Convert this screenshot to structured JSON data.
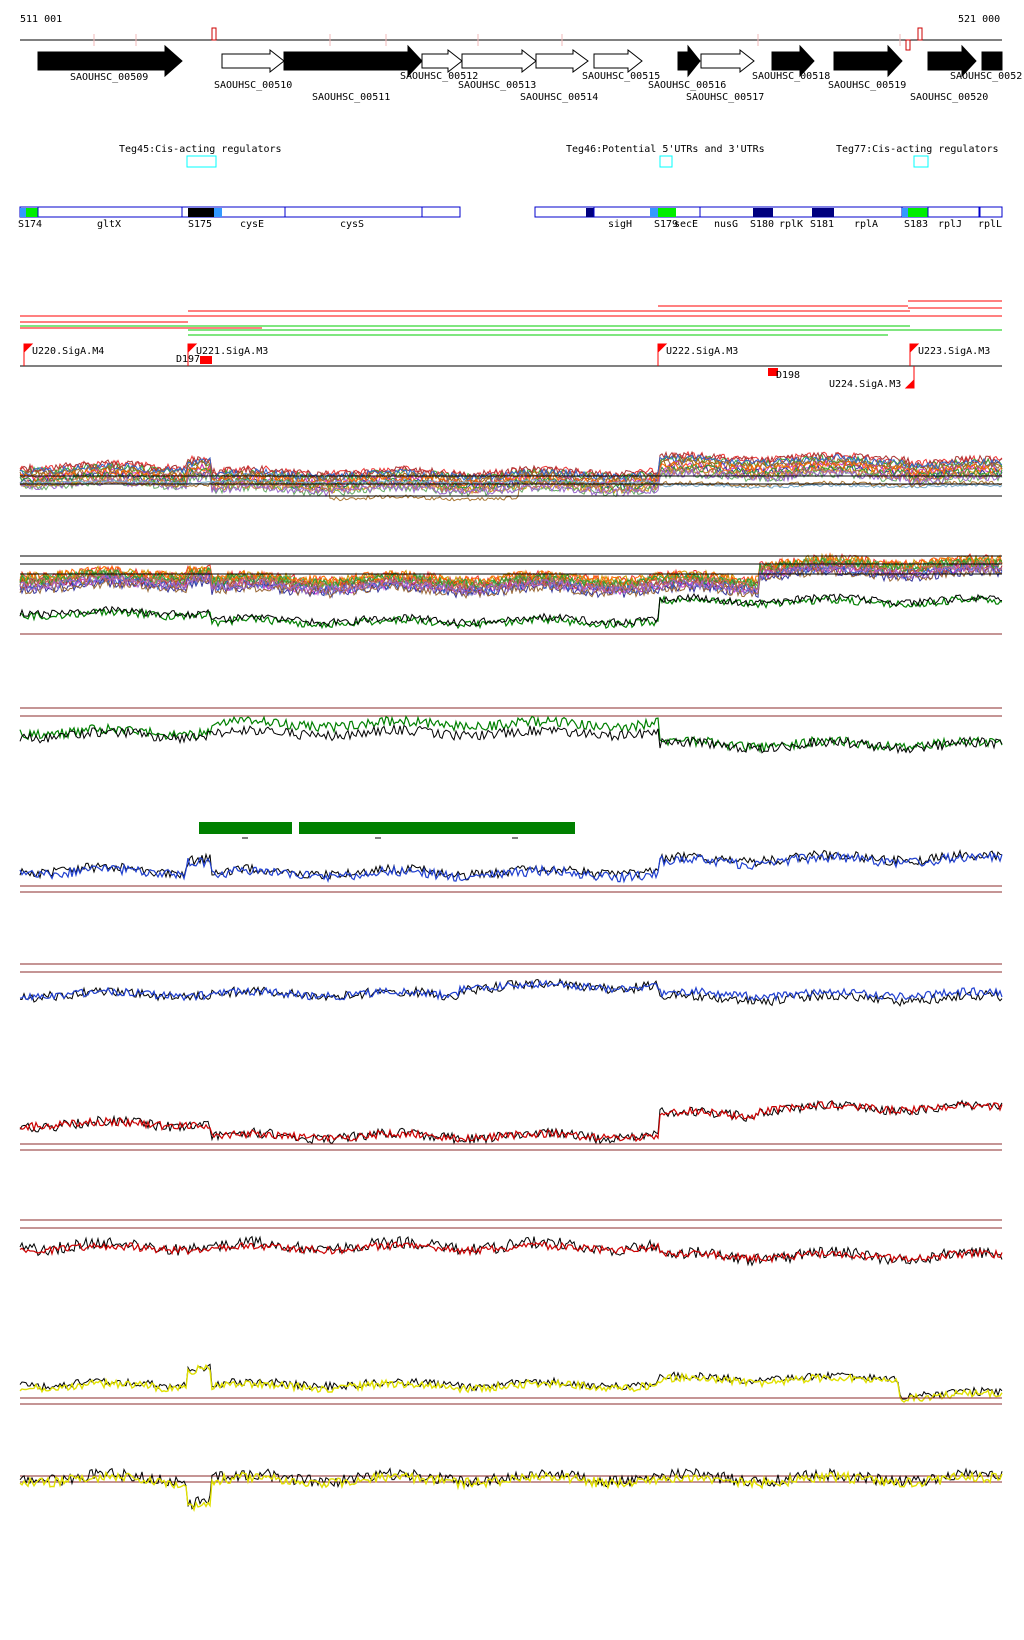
{
  "coordinates": {
    "start": "511 001",
    "end": "521 000"
  },
  "colors": {
    "gene_forward": "#000000",
    "gene_reverse": "#ffffff",
    "annotation_box": "#00ffff",
    "operon_outline": "#0000cc",
    "operon_dark": "#000080",
    "operon_green": "#00ee00",
    "operon_light": "#3399ff",
    "promoter_flag": "#ff0000",
    "transcript_red": "#ff0000",
    "transcript_green": "#00cc00",
    "track_brown": "#8b2b2b",
    "green_line": "#008000",
    "blue_line": "#1f3fcf",
    "red_line": "#cc0000",
    "yellow_line": "#e0e000",
    "black_line": "#000000",
    "green_bar": "#008000"
  },
  "genes": [
    {
      "name": "SAOUHSC_00509",
      "filled": true
    },
    {
      "name": "SAOUHSC_00510",
      "filled": false
    },
    {
      "name": "SAOUHSC_00511",
      "filled": true
    },
    {
      "name": "SAOUHSC_00512",
      "filled": false
    },
    {
      "name": "SAOUHSC_00513",
      "filled": false
    },
    {
      "name": "SAOUHSC_00514",
      "filled": false
    },
    {
      "name": "SAOUHSC_00515",
      "filled": false
    },
    {
      "name": "SAOUHSC_00516",
      "filled": true
    },
    {
      "name": "SAOUHSC_00517",
      "filled": false
    },
    {
      "name": "SAOUHSC_00518",
      "filled": true
    },
    {
      "name": "SAOUHSC_00519",
      "filled": true
    },
    {
      "name": "SAOUHSC_00520",
      "filled": true
    },
    {
      "name": "SAOUHSC_0052",
      "filled": true
    }
  ],
  "annotations": [
    {
      "label": "Teg45:Cis-acting regulators"
    },
    {
      "label": "Teg46:Potential 5'UTRs and 3'UTRs"
    },
    {
      "label": "Teg77:Cis-acting regulators"
    }
  ],
  "operon_labels": [
    "S174",
    "gltX",
    "S175",
    "cysE",
    "cysS",
    "sigH",
    "S179",
    "secE",
    "nusG",
    "S180",
    "rplK",
    "S181",
    "rplA",
    "S183",
    "rplJ",
    "rplL"
  ],
  "promoters": [
    {
      "label": "U220.SigA.M4"
    },
    {
      "label": "U221.SigA.M3"
    },
    {
      "label": "U222.SigA.M3"
    },
    {
      "label": "U223.SigA.M3"
    },
    {
      "label": "U224.SigA.M3"
    }
  ],
  "terminators": [
    {
      "label": "D197"
    },
    {
      "label": "D198"
    }
  ],
  "tracks": [
    {
      "name": "expression-multi-condition-1"
    },
    {
      "name": "expression-multi-condition-2"
    },
    {
      "name": "tiling-green"
    },
    {
      "name": "tiling-blue-1"
    },
    {
      "name": "tiling-blue-2"
    },
    {
      "name": "tiling-red-1"
    },
    {
      "name": "tiling-red-2"
    },
    {
      "name": "tiling-yellow-1"
    },
    {
      "name": "tiling-yellow-2"
    }
  ]
}
